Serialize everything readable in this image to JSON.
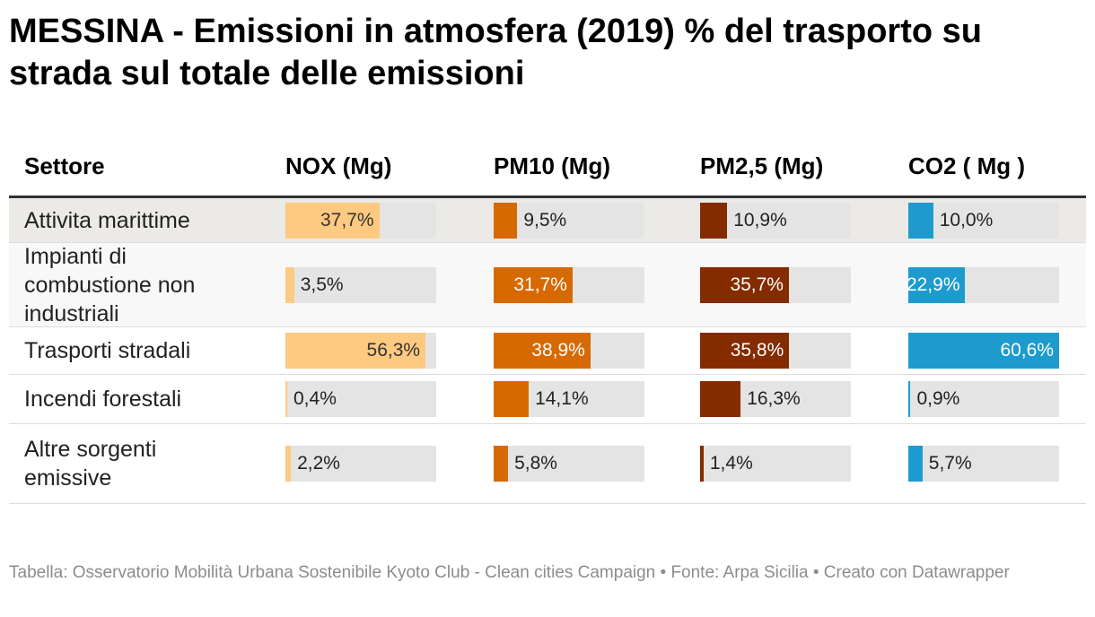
{
  "title": "MESSINA - Emissioni in atmosfera (2019) % del trasporto su strada sul totale delle emissioni",
  "source": "Tabella: Osservatorio Mobilità Urbana Sostenibile Kyoto Club - Clean cities Campaign • Fonte: Arpa Sicilia • Creato con Datawrapper",
  "chart_data": {
    "type": "table",
    "title": "MESSINA - Emissioni in atmosfera (2019) % del trasporto su strada sul totale delle emissioni",
    "columns": [
      "Settore",
      "NOX (Mg)",
      "PM10 (Mg)",
      "PM2,5 (Mg)",
      "CO2 ( Mg )"
    ],
    "column_colors": [
      "#fec980",
      "#d66900",
      "#842b00",
      "#1d9bcf"
    ],
    "value_range": [
      0,
      60.6
    ],
    "rows": [
      {
        "sector": "Attivita marittime",
        "values": [
          37.7,
          9.5,
          10.9,
          10.0
        ],
        "labels": [
          "37,7%",
          "9,5%",
          "10,9%",
          "10,0%"
        ]
      },
      {
        "sector": "Impianti di combustione non industriali",
        "values": [
          3.5,
          31.7,
          35.7,
          22.9
        ],
        "labels": [
          "3,5%",
          "31,7%",
          "35,7%",
          "22,9%"
        ]
      },
      {
        "sector": "Trasporti stradali",
        "values": [
          56.3,
          38.9,
          35.8,
          60.6
        ],
        "labels": [
          "56,3%",
          "38,9%",
          "35,8%",
          "60,6%"
        ]
      },
      {
        "sector": "Incendi forestali",
        "values": [
          0.4,
          14.1,
          16.3,
          0.9
        ],
        "labels": [
          "0,4%",
          "14,1%",
          "16,3%",
          "0,9%"
        ]
      },
      {
        "sector": "Altre sorgenti emissive",
        "values": [
          2.2,
          5.8,
          1.4,
          5.7
        ],
        "labels": [
          "2,2%",
          "5,8%",
          "1,4%",
          "5,7%"
        ]
      }
    ]
  }
}
